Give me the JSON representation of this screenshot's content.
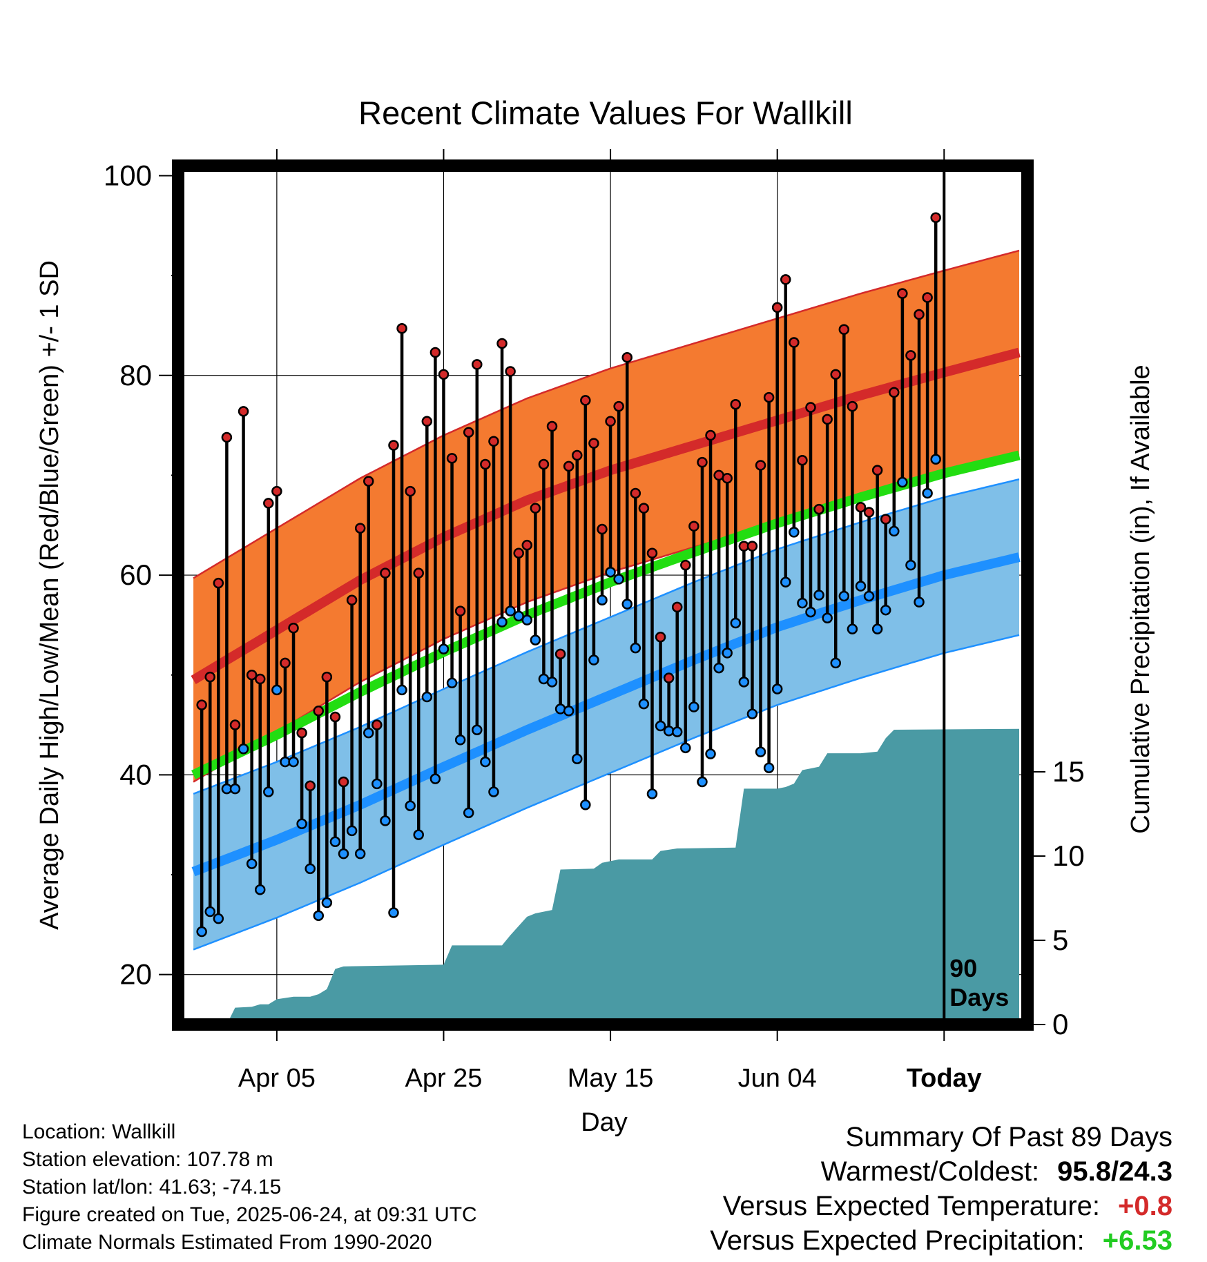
{
  "chart_data": {
    "type": "line",
    "title": "Recent Climate Values For Wallkill",
    "xlabel": "Day",
    "ylabel": "Average Daily High/Low/Mean (Red/Blue/Green) +/- 1 SD",
    "y2label": "Cumulative Precipitation (in), If Available",
    "xticks": [
      {
        "day": 10,
        "label": "Apr 05"
      },
      {
        "day": 30,
        "label": "Apr 25"
      },
      {
        "day": 50,
        "label": "May 15"
      },
      {
        "day": 70,
        "label": "Jun 04"
      },
      {
        "day": 90,
        "label": "Today"
      }
    ],
    "xlim": [
      -1,
      99
    ],
    "ylim": [
      15,
      101
    ],
    "yticks": [
      20,
      40,
      60,
      80,
      100
    ],
    "y2lim": [
      0,
      30
    ],
    "y2ticks": [
      0,
      5,
      10,
      15
    ],
    "grid": true,
    "today_marker": {
      "day": 90,
      "label_line1": "90",
      "label_line2": "Days"
    },
    "normals": {
      "days": [
        0,
        10,
        20,
        30,
        40,
        50,
        60,
        70,
        80,
        90,
        99
      ],
      "high_mean": [
        49.5,
        54.5,
        59.5,
        63.8,
        67.5,
        70.5,
        73.0,
        75.5,
        78.0,
        80.3,
        82.3
      ],
      "high_sd": 10.2,
      "low_mean": [
        30.3,
        33.5,
        37.0,
        40.8,
        44.5,
        48.0,
        51.5,
        54.8,
        57.5,
        60.0,
        61.8
      ],
      "low_sd": 7.8,
      "mean": [
        40.0,
        44.0,
        48.3,
        52.3,
        56.0,
        59.3,
        62.3,
        65.2,
        67.8,
        70.2,
        72.0
      ]
    },
    "series": [
      {
        "name": "High",
        "color": "#d42a2a",
        "values": [
          47.0,
          49.8,
          59.2,
          73.8,
          45.0,
          76.4,
          50.0,
          49.6,
          67.2,
          68.4,
          51.2,
          54.7,
          44.2,
          38.9,
          46.4,
          49.8,
          45.8,
          39.3,
          57.5,
          64.7,
          69.4,
          45.0,
          60.2,
          73.0,
          84.7,
          68.4,
          60.2,
          75.4,
          82.3,
          80.1,
          71.7,
          56.4,
          74.3,
          81.1,
          71.1,
          73.4,
          83.2,
          80.4,
          62.2,
          63.0,
          66.7,
          71.1,
          74.9,
          52.1,
          70.9,
          72.0,
          77.5,
          73.2,
          64.6,
          75.4,
          76.9,
          81.8,
          68.2,
          66.7,
          62.2,
          53.8,
          49.7,
          56.8,
          61.0,
          64.9,
          71.3,
          74.0,
          70.0,
          69.7,
          77.1,
          62.9,
          62.9,
          71.0,
          77.8,
          86.8,
          89.6,
          83.3,
          71.5,
          76.8,
          66.6,
          75.6,
          80.1,
          84.6,
          76.9,
          66.8,
          66.3,
          70.5,
          65.6,
          78.3,
          88.2,
          82.0,
          86.1,
          87.8,
          95.8
        ]
      },
      {
        "name": "Low",
        "color": "#1e90ff",
        "values": [
          24.3,
          26.3,
          25.6,
          38.6,
          38.6,
          42.6,
          31.1,
          28.5,
          38.3,
          48.5,
          41.3,
          41.3,
          35.1,
          30.6,
          25.9,
          27.2,
          33.3,
          32.1,
          34.4,
          32.1,
          44.2,
          39.1,
          35.4,
          26.2,
          48.5,
          36.9,
          34.0,
          47.8,
          39.6,
          52.6,
          49.2,
          43.5,
          36.2,
          44.5,
          41.3,
          38.3,
          55.3,
          56.4,
          55.9,
          55.5,
          53.5,
          49.6,
          49.3,
          46.6,
          46.4,
          41.6,
          37.0,
          51.5,
          57.5,
          60.3,
          59.6,
          57.1,
          52.7,
          47.1,
          38.1,
          44.9,
          44.4,
          44.3,
          42.7,
          46.8,
          39.3,
          42.1,
          50.7,
          52.2,
          55.2,
          49.3,
          46.1,
          42.3,
          40.7,
          48.6,
          59.3,
          64.3,
          57.2,
          56.3,
          58.0,
          55.7,
          51.2,
          57.9,
          54.6,
          58.9,
          57.9,
          54.6,
          56.5,
          64.4,
          69.3,
          61.0,
          57.3,
          68.2,
          71.6
        ]
      }
    ],
    "precipitation": {
      "days": [
        0,
        4,
        5,
        7,
        8,
        9,
        10,
        12,
        14,
        15,
        16,
        17,
        18,
        30,
        31,
        37,
        38,
        40,
        41,
        43,
        44,
        48,
        49,
        51,
        55,
        56,
        58,
        65,
        66,
        70,
        71,
        72,
        73,
        74,
        75,
        76,
        80,
        81,
        82,
        83,
        84,
        99
      ],
      "cum_in": [
        0.0,
        0.0,
        1.0,
        1.05,
        1.2,
        1.2,
        1.5,
        1.65,
        1.65,
        1.8,
        2.1,
        3.3,
        3.45,
        3.55,
        4.7,
        4.7,
        5.3,
        6.4,
        6.6,
        6.8,
        9.2,
        9.25,
        9.6,
        9.8,
        9.8,
        10.3,
        10.45,
        10.5,
        14.0,
        14.0,
        14.1,
        14.3,
        15.1,
        15.2,
        15.3,
        16.1,
        16.1,
        16.15,
        16.2,
        17.0,
        17.5,
        17.55
      ]
    }
  },
  "footer": {
    "location": "Location: Wallkill",
    "elevation": "Station elevation: 107.78 m",
    "latlon": "Station lat/lon: 41.63; -74.15",
    "created": "Figure created on Tue, 2025-06-24, at 09:31 UTC",
    "normals_period": "Climate Normals Estimated From 1990-2020"
  },
  "summary": {
    "title": "Summary Of Past 89 Days",
    "warm_cold_label": "Warmest/Coldest:",
    "warm_cold_value": "95.8/24.3",
    "temp_label": "Versus Expected Temperature:",
    "temp_value": "+0.8",
    "temp_color": "#d42a2a",
    "precip_label": "Versus Expected Precipitation:",
    "precip_value": "+6.53",
    "precip_color": "#22cc22"
  }
}
